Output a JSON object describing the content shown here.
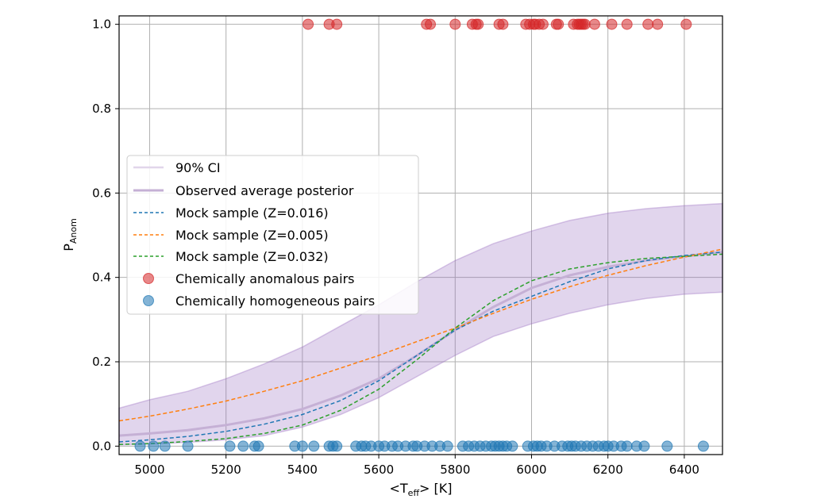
{
  "chart_data": {
    "type": "scatter",
    "xlabel": {
      "main": "<T",
      "sub": "eff",
      "tail": "> [K]"
    },
    "ylabel": {
      "main": "P",
      "sub": "Anom"
    },
    "xlim": [
      4920,
      6500
    ],
    "ylim": [
      -0.02,
      1.02
    ],
    "x_ticks": [
      5000,
      5200,
      5400,
      5600,
      5800,
      6000,
      6200,
      6400
    ],
    "y_ticks": [
      0.0,
      0.2,
      0.4,
      0.6,
      0.8,
      1.0
    ],
    "x_tick_labels": [
      "5000",
      "5200",
      "5400",
      "5600",
      "5800",
      "6000",
      "6200",
      "6400"
    ],
    "y_tick_labels": [
      "0.0",
      "0.2",
      "0.4",
      "0.6",
      "0.8",
      "1.0"
    ],
    "grid": true,
    "legend_position": "center-left",
    "ci_band": {
      "name": "90% CI",
      "color": "#9467bd",
      "x": [
        4920,
        5000,
        5100,
        5200,
        5300,
        5400,
        5500,
        5600,
        5700,
        5800,
        5900,
        6000,
        6100,
        6200,
        6300,
        6400,
        6500
      ],
      "lower": [
        0.003,
        0.005,
        0.009,
        0.015,
        0.025,
        0.045,
        0.075,
        0.115,
        0.165,
        0.215,
        0.26,
        0.29,
        0.315,
        0.335,
        0.35,
        0.36,
        0.365
      ],
      "upper": [
        0.09,
        0.11,
        0.13,
        0.16,
        0.195,
        0.235,
        0.285,
        0.335,
        0.39,
        0.44,
        0.48,
        0.51,
        0.535,
        0.552,
        0.563,
        0.57,
        0.575
      ]
    },
    "series": [
      {
        "name": "Observed average posterior",
        "color": "#c5b0d5",
        "style": "solid",
        "x": [
          4920,
          5000,
          5100,
          5200,
          5300,
          5400,
          5500,
          5600,
          5700,
          5800,
          5900,
          6000,
          6100,
          6200,
          6300,
          6400,
          6500
        ],
        "y": [
          0.025,
          0.03,
          0.038,
          0.05,
          0.066,
          0.088,
          0.12,
          0.16,
          0.215,
          0.275,
          0.33,
          0.375,
          0.405,
          0.425,
          0.44,
          0.45,
          0.46
        ]
      },
      {
        "name": "Mock sample (Z=0.016)",
        "color": "#1f77b4",
        "style": "dashed",
        "x": [
          4920,
          5000,
          5100,
          5200,
          5300,
          5400,
          5500,
          5600,
          5700,
          5800,
          5900,
          6000,
          6100,
          6200,
          6300,
          6400,
          6500
        ],
        "y": [
          0.01,
          0.015,
          0.023,
          0.035,
          0.052,
          0.075,
          0.108,
          0.155,
          0.215,
          0.275,
          0.32,
          0.355,
          0.39,
          0.42,
          0.44,
          0.452,
          0.46
        ]
      },
      {
        "name": "Mock sample (Z=0.005)",
        "color": "#ff7f0e",
        "style": "dashed",
        "x": [
          4920,
          5000,
          5100,
          5200,
          5300,
          5400,
          5500,
          5600,
          5700,
          5800,
          5900,
          6000,
          6100,
          6200,
          6300,
          6400,
          6500
        ],
        "y": [
          0.06,
          0.071,
          0.088,
          0.107,
          0.13,
          0.155,
          0.185,
          0.215,
          0.248,
          0.28,
          0.315,
          0.348,
          0.378,
          0.405,
          0.428,
          0.448,
          0.467
        ]
      },
      {
        "name": "Mock sample (Z=0.032)",
        "color": "#2ca02c",
        "style": "dashed",
        "x": [
          4920,
          5000,
          5100,
          5200,
          5300,
          5400,
          5500,
          5600,
          5700,
          5800,
          5900,
          6000,
          6100,
          6200,
          6300,
          6400,
          6500
        ],
        "y": [
          0.004,
          0.006,
          0.011,
          0.018,
          0.03,
          0.05,
          0.085,
          0.135,
          0.205,
          0.28,
          0.345,
          0.392,
          0.42,
          0.435,
          0.445,
          0.45,
          0.455
        ]
      }
    ],
    "scatter": [
      {
        "name": "Chemically anomalous pairs",
        "color": "#d62728",
        "y": 1.0,
        "x": [
          5415,
          5470,
          5490,
          5725,
          5735,
          5800,
          5845,
          5855,
          5860,
          5915,
          5925,
          5985,
          5995,
          6005,
          6010,
          6020,
          6030,
          6065,
          6070,
          6110,
          6120,
          6125,
          6130,
          6135,
          6140,
          6165,
          6210,
          6250,
          6305,
          6330,
          6405
        ]
      },
      {
        "name": "Chemically homogeneous pairs",
        "color": "#1f77b4",
        "y": 0.0,
        "x": [
          4975,
          5010,
          5040,
          5100,
          5210,
          5245,
          5275,
          5285,
          5380,
          5400,
          5430,
          5470,
          5480,
          5490,
          5540,
          5555,
          5565,
          5580,
          5600,
          5615,
          5635,
          5650,
          5670,
          5690,
          5700,
          5720,
          5740,
          5760,
          5780,
          5820,
          5835,
          5850,
          5865,
          5880,
          5895,
          5905,
          5915,
          5925,
          5935,
          5950,
          5990,
          6005,
          6015,
          6025,
          6040,
          6060,
          6080,
          6095,
          6105,
          6115,
          6130,
          6145,
          6160,
          6175,
          6190,
          6200,
          6215,
          6235,
          6250,
          6275,
          6295,
          6355,
          6450
        ]
      }
    ]
  }
}
